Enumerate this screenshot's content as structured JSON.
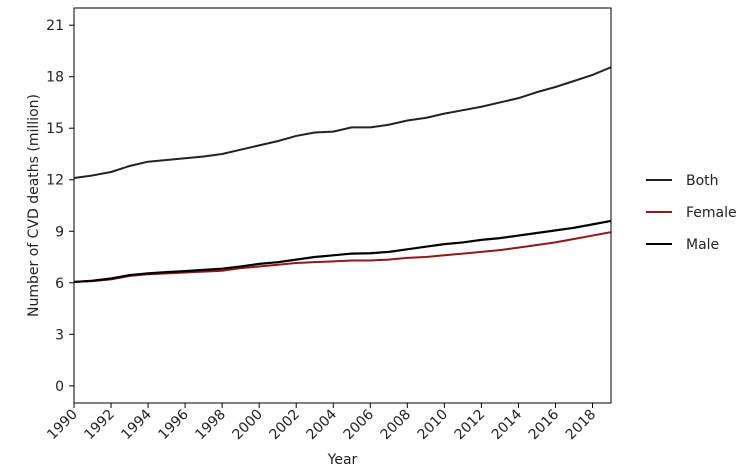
{
  "chart_data": {
    "type": "line",
    "title": "",
    "xlabel": "Year",
    "ylabel": "Number of CVD deaths (million)",
    "xlim": [
      1990,
      2019
    ],
    "ylim": [
      -1,
      22
    ],
    "x_ticks": [
      "1990",
      "1992",
      "1994",
      "1996",
      "1998",
      "2000",
      "2002",
      "2004",
      "2006",
      "2008",
      "2010",
      "2012",
      "2014",
      "2016",
      "2018"
    ],
    "y_ticks": [
      "0",
      "3",
      "6",
      "9",
      "12",
      "15",
      "18",
      "21"
    ],
    "grid": false,
    "legend_position": "right",
    "x": [
      1990,
      1991,
      1992,
      1993,
      1994,
      1995,
      1996,
      1997,
      1998,
      1999,
      2000,
      2001,
      2002,
      2003,
      2004,
      2005,
      2006,
      2007,
      2008,
      2009,
      2010,
      2011,
      2012,
      2013,
      2014,
      2015,
      2016,
      2017,
      2018,
      2019
    ],
    "series": [
      {
        "name": "Both",
        "color": "#222222",
        "values": [
          12.1,
          12.25,
          12.45,
          12.8,
          13.05,
          13.15,
          13.25,
          13.35,
          13.5,
          13.75,
          14.0,
          14.25,
          14.55,
          14.75,
          14.8,
          15.05,
          15.05,
          15.2,
          15.45,
          15.6,
          15.85,
          16.05,
          16.25,
          16.5,
          16.75,
          17.1,
          17.4,
          17.75,
          18.1,
          18.55
        ]
      },
      {
        "name": "Female",
        "color": "#8b1a1a",
        "values": [
          6.05,
          6.1,
          6.2,
          6.4,
          6.5,
          6.55,
          6.6,
          6.65,
          6.7,
          6.85,
          6.95,
          7.05,
          7.15,
          7.2,
          7.25,
          7.3,
          7.3,
          7.35,
          7.45,
          7.5,
          7.6,
          7.7,
          7.8,
          7.9,
          8.05,
          8.2,
          8.35,
          8.55,
          8.75,
          8.95
        ]
      },
      {
        "name": "Male",
        "color": "#000000",
        "values": [
          6.05,
          6.12,
          6.25,
          6.45,
          6.55,
          6.62,
          6.68,
          6.75,
          6.82,
          6.95,
          7.1,
          7.2,
          7.35,
          7.5,
          7.6,
          7.7,
          7.72,
          7.8,
          7.95,
          8.1,
          8.25,
          8.35,
          8.5,
          8.6,
          8.75,
          8.9,
          9.05,
          9.2,
          9.4,
          9.6
        ]
      }
    ]
  }
}
